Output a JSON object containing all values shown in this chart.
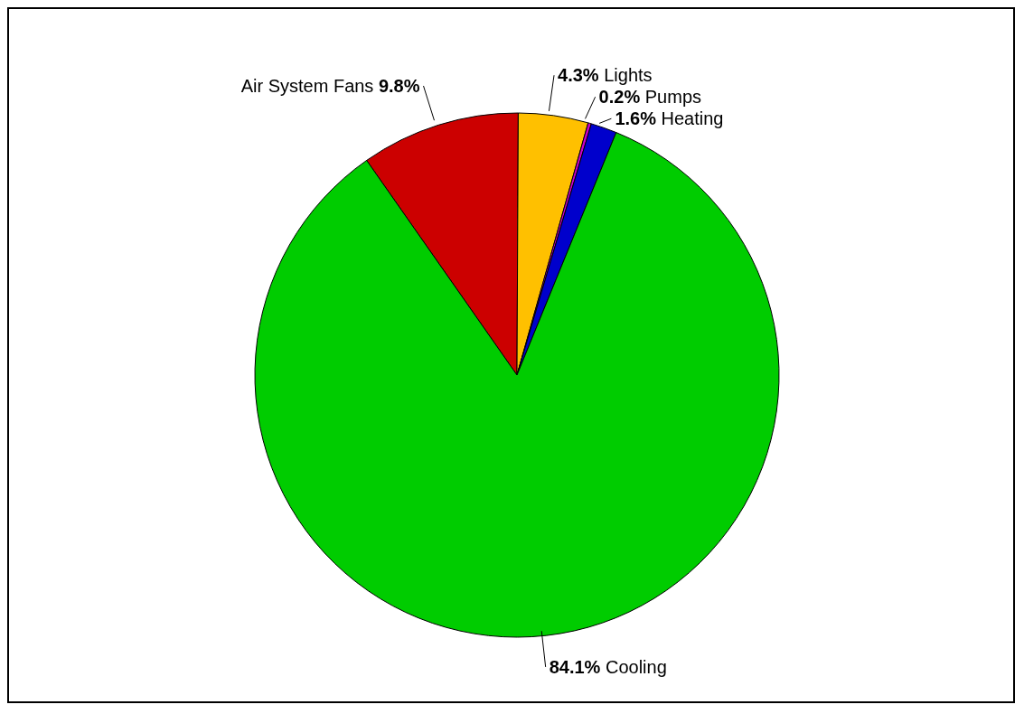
{
  "chart_data": {
    "type": "pie",
    "categories": [
      "Air System Fans",
      "Lights",
      "Pumps",
      "Heating",
      "Cooling"
    ],
    "values": [
      9.8,
      4.3,
      0.2,
      1.6,
      84.1
    ],
    "colors": [
      "#cc0000",
      "#ffc000",
      "#cc00cc",
      "#0000cc",
      "#00cc00"
    ],
    "data_labels": true,
    "value_labels": [
      "9.8%",
      "4.3%",
      "0.2%",
      "1.6%",
      "84.1%"
    ]
  }
}
